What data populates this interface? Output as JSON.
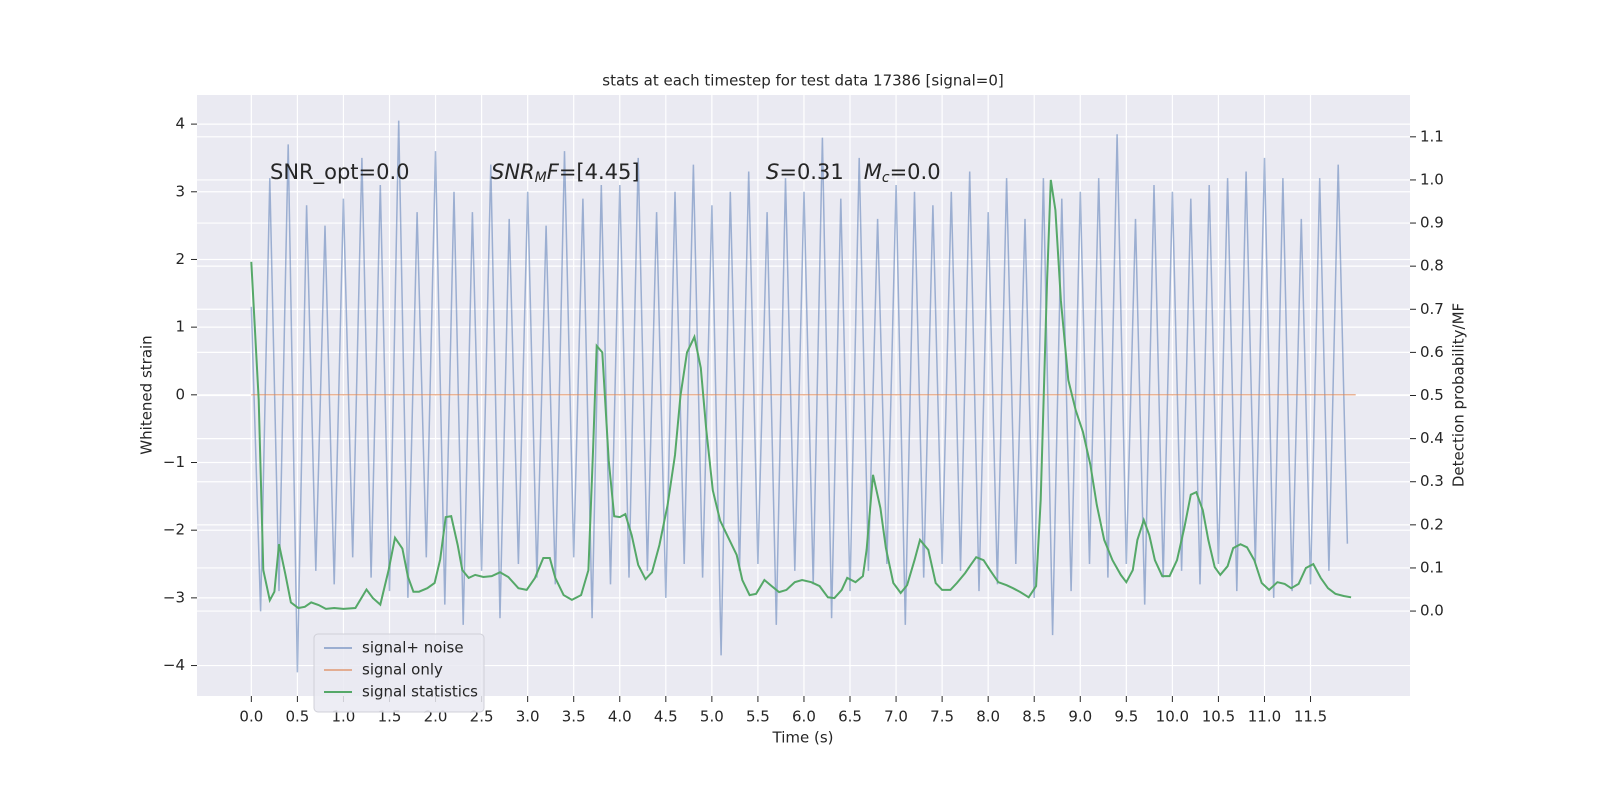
{
  "chart_data": {
    "type": "line",
    "title": "stats at each timestep for test data 17386 [signal=0]",
    "xlabel": "Time (s)",
    "ylabel": "Whitened strain",
    "y2label": "Detection probability/MF",
    "xlim": [
      -0.59,
      12.58
    ],
    "ylim": [
      -4.45,
      4.43
    ],
    "y2lim": [
      -0.197,
      1.197
    ],
    "xticks": [
      {
        "value": 0,
        "label": "0.0"
      },
      0.5,
      {
        "value": 1,
        "label": "1.0"
      },
      1.5,
      {
        "value": 2,
        "label": "2.0"
      },
      2.5,
      {
        "value": 3,
        "label": "3.0"
      },
      3.5,
      {
        "value": 4,
        "label": "4.0"
      },
      4.5,
      {
        "value": 5,
        "label": "5.0"
      },
      5.5,
      {
        "value": 6,
        "label": "6.0"
      },
      6.5,
      {
        "value": 7,
        "label": "7.0"
      },
      7.5,
      {
        "value": 8,
        "label": "8.0"
      },
      8.5,
      {
        "value": 9,
        "label": "9.0"
      },
      9.5,
      {
        "value": 10,
        "label": "10.0"
      },
      10.5,
      {
        "value": 11,
        "label": "11.0"
      },
      11.5
    ],
    "yticks": [
      {
        "value": -4,
        "label": "−4"
      },
      {
        "value": -3,
        "label": "−3"
      },
      {
        "value": -2,
        "label": "−2"
      },
      {
        "value": -1,
        "label": "−1"
      },
      0,
      1,
      2,
      3,
      4
    ],
    "y2ticks": [
      {
        "value": 0,
        "label": "0.0"
      },
      0.1,
      0.2,
      0.3,
      0.4,
      0.5,
      0.6,
      0.7,
      0.8,
      0.9,
      {
        "value": 1,
        "label": "1.0"
      },
      1.1
    ],
    "grid": true,
    "legend": "lower left",
    "annotations": [
      [
        {
          "text": "SNR_opt=0.0"
        }
      ],
      [
        {
          "text": "SNR",
          "style": "italic"
        },
        {
          "text": "M",
          "style": "italic",
          "sub": true
        },
        {
          "text": "F",
          "style": "italic"
        },
        {
          "text": "=[4.45]"
        }
      ],
      [
        {
          "text": "S",
          "style": "italic"
        },
        {
          "text": "=0.31   "
        },
        {
          "text": "M",
          "style": "italic"
        },
        {
          "text": "c",
          "style": "italic",
          "sub": true
        },
        {
          "text": "=0.0"
        }
      ]
    ],
    "series": [
      {
        "name": "signal+ noise",
        "color": "#4c72b0",
        "opacity": 0.5,
        "x": [
          0,
          0.1,
          0.2,
          0.3,
          0.4,
          0.5,
          0.6,
          0.7,
          0.8,
          0.9,
          1,
          1.1,
          1.2,
          1.3,
          1.4,
          1.5,
          1.6,
          1.7,
          1.8,
          1.9,
          2,
          2.1,
          2.2,
          2.3,
          2.4,
          2.5,
          2.6,
          2.7,
          2.8,
          2.9,
          3,
          3.1,
          3.2,
          3.3,
          3.4,
          3.5,
          3.6,
          3.7,
          3.8,
          3.9,
          4,
          4.1,
          4.2,
          4.3,
          4.4,
          4.5,
          4.6,
          4.7,
          4.8,
          4.9,
          5,
          5.1,
          5.2,
          5.3,
          5.4,
          5.5,
          5.6,
          5.7,
          5.8,
          5.9,
          6,
          6.1,
          6.2,
          6.3,
          6.4,
          6.5,
          6.6,
          6.7,
          6.8,
          6.9,
          7,
          7.1,
          7.2,
          7.3,
          7.4,
          7.5,
          7.6,
          7.7,
          7.8,
          7.9,
          8,
          8.1,
          8.2,
          8.3,
          8.4,
          8.5,
          8.6,
          8.7,
          8.8,
          8.9,
          9,
          9.1,
          9.2,
          9.3,
          9.4,
          9.5,
          9.6,
          9.7,
          9.8,
          9.9,
          10,
          10.1,
          10.2,
          10.3,
          10.4,
          10.5,
          10.6,
          10.7,
          10.8,
          10.9,
          11,
          11.1,
          11.2,
          11.3,
          11.4,
          11.5,
          11.6,
          11.7,
          11.8,
          11.9
        ],
        "values": [
          1.3,
          -3.2,
          3.2,
          -2.9,
          3.7,
          -4.1,
          2.8,
          -2.6,
          2.5,
          -2.8,
          2.9,
          -2.4,
          3.5,
          -2.7,
          3.1,
          -2.9,
          4.05,
          -3.0,
          2.7,
          -2.4,
          3.6,
          -3.1,
          3.0,
          -3.4,
          2.7,
          -2.6,
          3.4,
          -3.3,
          2.6,
          -2.5,
          3.0,
          -2.7,
          2.5,
          -2.8,
          3.6,
          -2.4,
          2.9,
          -3.3,
          3.1,
          -2.8,
          3.1,
          -2.7,
          3.5,
          -2.6,
          2.7,
          -3.0,
          3.0,
          -2.5,
          3.4,
          -2.7,
          2.8,
          -3.85,
          3.0,
          -2.6,
          3.3,
          -2.5,
          2.7,
          -3.4,
          3.2,
          -2.6,
          3.0,
          -2.8,
          3.8,
          -3.3,
          2.9,
          -2.9,
          3.5,
          -2.6,
          2.6,
          -2.5,
          3.1,
          -3.4,
          3.0,
          -2.7,
          2.8,
          -2.5,
          3.0,
          -2.6,
          3.3,
          -2.9,
          2.7,
          -2.8,
          3.2,
          -2.5,
          2.6,
          -3.0,
          3.2,
          -3.55,
          2.9,
          -2.9,
          3.0,
          -2.5,
          3.2,
          -2.7,
          3.85,
          -2.5,
          2.6,
          -3.1,
          3.1,
          -2.7,
          3.0,
          -2.6,
          2.9,
          -2.8,
          3.1,
          -2.5,
          3.2,
          -2.9,
          3.3,
          -2.5,
          3.5,
          -3.0,
          3.2,
          -2.9,
          2.6,
          -2.8,
          3.2,
          -2.6,
          3.4,
          -2.2
        ]
      },
      {
        "name": "signal only",
        "color": "#dd8452",
        "opacity": 0.6,
        "x": [
          0,
          11.99
        ],
        "values": [
          0,
          0
        ]
      },
      {
        "name": "signal statistics",
        "color": "#55a868",
        "opacity": 1,
        "axis": "y2",
        "x": [
          0,
          0.08,
          0.13,
          0.2,
          0.25,
          0.3,
          0.37,
          0.43,
          0.51,
          0.58,
          0.65,
          0.73,
          0.81,
          0.9,
          1.0,
          1.13,
          1.25,
          1.32,
          1.4,
          1.49,
          1.56,
          1.64,
          1.7,
          1.76,
          1.82,
          1.91,
          1.99,
          2.05,
          2.11,
          2.17,
          2.24,
          2.29,
          2.36,
          2.43,
          2.52,
          2.61,
          2.7,
          2.79,
          2.9,
          2.99,
          3.08,
          3.17,
          3.24,
          3.3,
          3.39,
          3.48,
          3.58,
          3.66,
          3.71,
          3.75,
          3.81,
          3.88,
          3.94,
          4.0,
          4.06,
          4.13,
          4.2,
          4.28,
          4.35,
          4.43,
          4.52,
          4.6,
          4.66,
          4.73,
          4.81,
          4.88,
          4.94,
          5.01,
          5.09,
          5.18,
          5.27,
          5.33,
          5.41,
          5.48,
          5.57,
          5.65,
          5.73,
          5.81,
          5.9,
          5.98,
          6.08,
          6.17,
          6.26,
          6.33,
          6.41,
          6.47,
          6.56,
          6.64,
          6.68,
          6.75,
          6.83,
          6.89,
          6.97,
          7.05,
          7.12,
          7.2,
          7.26,
          7.35,
          7.43,
          7.5,
          7.59,
          7.66,
          7.75,
          7.81,
          7.87,
          7.95,
          8.02,
          8.11,
          8.2,
          8.27,
          8.35,
          8.44,
          8.52,
          8.57,
          8.64,
          8.68,
          8.73,
          8.79,
          8.87,
          8.95,
          9.03,
          9.11,
          9.18,
          9.26,
          9.35,
          9.44,
          9.5,
          9.57,
          9.62,
          9.69,
          9.75,
          9.81,
          9.89,
          9.97,
          10.05,
          10.13,
          10.2,
          10.26,
          10.33,
          10.39,
          10.46,
          10.52,
          10.6,
          10.66,
          10.74,
          10.81,
          10.89,
          10.97,
          11.05,
          11.14,
          11.22,
          11.29,
          11.37,
          11.45,
          11.53,
          11.61,
          11.69,
          11.77,
          11.86,
          11.94
        ],
        "values": [
          0.81,
          0.49,
          0.095,
          0.025,
          0.045,
          0.155,
          0.085,
          0.02,
          0.007,
          0.01,
          0.02,
          0.014,
          0.005,
          0.007,
          0.005,
          0.007,
          0.05,
          0.03,
          0.015,
          0.095,
          0.17,
          0.145,
          0.08,
          0.045,
          0.045,
          0.053,
          0.065,
          0.12,
          0.218,
          0.22,
          0.153,
          0.095,
          0.077,
          0.084,
          0.079,
          0.081,
          0.09,
          0.079,
          0.053,
          0.049,
          0.077,
          0.123,
          0.123,
          0.077,
          0.037,
          0.026,
          0.037,
          0.095,
          0.37,
          0.615,
          0.6,
          0.35,
          0.22,
          0.218,
          0.225,
          0.176,
          0.107,
          0.074,
          0.09,
          0.153,
          0.246,
          0.362,
          0.5,
          0.6,
          0.636,
          0.564,
          0.42,
          0.28,
          0.21,
          0.17,
          0.13,
          0.072,
          0.037,
          0.04,
          0.072,
          0.058,
          0.044,
          0.049,
          0.067,
          0.072,
          0.067,
          0.058,
          0.032,
          0.03,
          0.049,
          0.077,
          0.067,
          0.081,
          0.142,
          0.316,
          0.239,
          0.146,
          0.065,
          0.042,
          0.06,
          0.118,
          0.165,
          0.142,
          0.065,
          0.049,
          0.049,
          0.065,
          0.088,
          0.107,
          0.125,
          0.118,
          0.095,
          0.067,
          0.06,
          0.053,
          0.044,
          0.032,
          0.058,
          0.258,
          0.768,
          1.0,
          0.93,
          0.72,
          0.536,
          0.466,
          0.415,
          0.339,
          0.246,
          0.165,
          0.118,
          0.084,
          0.067,
          0.095,
          0.165,
          0.211,
          0.176,
          0.118,
          0.081,
          0.081,
          0.118,
          0.193,
          0.27,
          0.276,
          0.234,
          0.165,
          0.102,
          0.084,
          0.104,
          0.146,
          0.155,
          0.148,
          0.118,
          0.065,
          0.049,
          0.067,
          0.063,
          0.053,
          0.063,
          0.1,
          0.109,
          0.077,
          0.053,
          0.04,
          0.035,
          0.032
        ]
      }
    ]
  }
}
